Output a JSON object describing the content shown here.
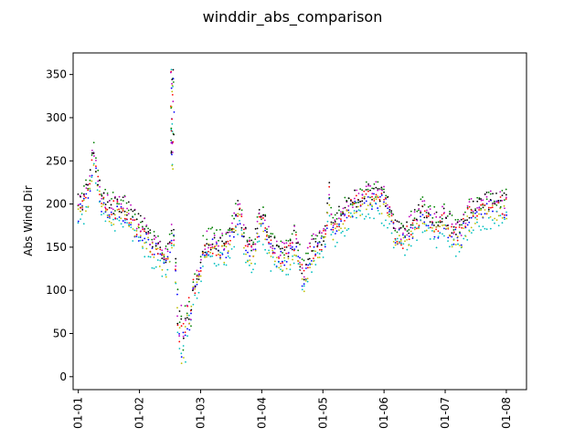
{
  "chart_data": {
    "type": "scatter",
    "title": "winddir_abs_comparison",
    "xlabel": "",
    "ylabel": "Abs Wind Dir",
    "x_ticks": [
      "01-01",
      "01-02",
      "01-03",
      "01-04",
      "01-05",
      "01-06",
      "01-07",
      "01-08"
    ],
    "xlim": [
      -0.085,
      7.33
    ],
    "ylim": [
      -15,
      375
    ],
    "y_ticks": [
      0,
      50,
      100,
      150,
      200,
      250,
      300,
      350
    ],
    "grid": false,
    "series_colors": [
      "#0000ff",
      "#008000",
      "#ff0000",
      "#00bfbf",
      "#bf00bf",
      "#bfbf00",
      "#000000"
    ],
    "base_curve": [
      [
        0.0,
        190
      ],
      [
        0.1,
        205
      ],
      [
        0.18,
        220
      ],
      [
        0.25,
        260
      ],
      [
        0.3,
        235
      ],
      [
        0.38,
        200
      ],
      [
        0.6,
        195
      ],
      [
        0.75,
        195
      ],
      [
        0.9,
        180
      ],
      [
        1.05,
        170
      ],
      [
        1.2,
        155
      ],
      [
        1.35,
        145
      ],
      [
        1.45,
        135
      ],
      [
        1.5,
        150
      ],
      [
        1.55,
        175
      ],
      [
        1.62,
        90
      ],
      [
        1.72,
        70
      ],
      [
        1.8,
        100
      ],
      [
        1.95,
        110
      ],
      [
        2.05,
        150
      ],
      [
        2.2,
        155
      ],
      [
        2.4,
        150
      ],
      [
        2.55,
        175
      ],
      [
        2.62,
        195
      ],
      [
        2.72,
        160
      ],
      [
        2.85,
        145
      ],
      [
        2.92,
        165
      ],
      [
        2.98,
        185
      ],
      [
        3.05,
        175
      ],
      [
        3.15,
        150
      ],
      [
        3.3,
        140
      ],
      [
        3.45,
        145
      ],
      [
        3.55,
        160
      ],
      [
        3.68,
        115
      ],
      [
        3.8,
        145
      ],
      [
        3.92,
        155
      ],
      [
        4.05,
        165
      ],
      [
        4.1,
        215
      ],
      [
        4.15,
        175
      ],
      [
        4.3,
        185
      ],
      [
        4.45,
        200
      ],
      [
        4.6,
        205
      ],
      [
        4.75,
        210
      ],
      [
        4.9,
        210
      ],
      [
        5.05,
        200
      ],
      [
        5.15,
        175
      ],
      [
        5.3,
        160
      ],
      [
        5.45,
        175
      ],
      [
        5.6,
        190
      ],
      [
        5.72,
        190
      ],
      [
        5.85,
        175
      ],
      [
        6.0,
        185
      ],
      [
        6.1,
        170
      ],
      [
        6.25,
        165
      ],
      [
        6.35,
        185
      ],
      [
        6.5,
        195
      ],
      [
        6.7,
        200
      ],
      [
        6.85,
        200
      ],
      [
        7.0,
        198
      ]
    ],
    "spike": {
      "x_center": 1.54,
      "x_spread": 0.03,
      "y_range": [
        240,
        360
      ]
    }
  }
}
